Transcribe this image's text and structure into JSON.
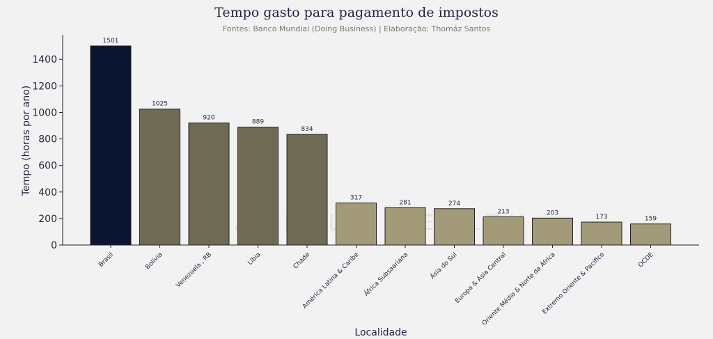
{
  "chart_data": {
    "type": "bar",
    "title": "Tempo gasto para pagamento de impostos",
    "subtitle": "Fontes: Banco Mundial (Doing Business) | Elaboração: Thomáz Santos",
    "watermark": "ZANELLA WEALTH",
    "x_label": "Localidade",
    "y_label": "Tempo (horas por ano)",
    "categories": [
      "Brasil",
      "Bolívia",
      "Venezuela , RB",
      "Líbia",
      "Chade",
      "América Latina & Caribe",
      "África  Subsaariana",
      "Ásia do Sul",
      "Europa & Ásia Central",
      "Oriente Médio & Norte da África",
      "Extremo Oriente & Pacífico",
      "OCDE"
    ],
    "values": [
      1501,
      1025,
      920,
      889,
      834,
      317,
      281,
      274,
      213,
      203,
      173,
      159
    ],
    "colors": [
      "#0b1530",
      "#6e6a55",
      "#6e6a55",
      "#6e6a55",
      "#6e6a55",
      "#a39a7a",
      "#a39a7a",
      "#a39a7a",
      "#a39a7a",
      "#a39a7a",
      "#a39a7a",
      "#a39a7a"
    ],
    "ylim": [
      0,
      1585
    ],
    "yticks": [
      0,
      200,
      400,
      600,
      800,
      1000,
      1200,
      1400
    ],
    "grid": false
  }
}
